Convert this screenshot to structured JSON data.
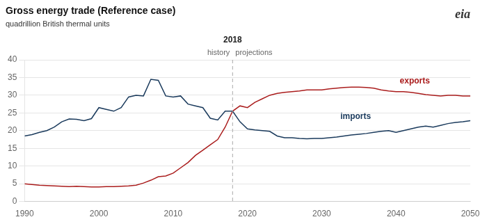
{
  "chart_data": {
    "type": "line",
    "title": "Gross energy trade (Reference case)",
    "subtitle": "quadrillion British thermal units",
    "x": [
      1990,
      1991,
      1992,
      1993,
      1994,
      1995,
      1996,
      1997,
      1998,
      1999,
      2000,
      2001,
      2002,
      2003,
      2004,
      2005,
      2006,
      2007,
      2008,
      2009,
      2010,
      2011,
      2012,
      2013,
      2014,
      2015,
      2016,
      2017,
      2018,
      2019,
      2020,
      2021,
      2022,
      2023,
      2024,
      2025,
      2026,
      2027,
      2028,
      2029,
      2030,
      2031,
      2032,
      2033,
      2034,
      2035,
      2036,
      2037,
      2038,
      2039,
      2040,
      2041,
      2042,
      2043,
      2044,
      2045,
      2046,
      2047,
      2048,
      2049,
      2050
    ],
    "series": [
      {
        "name": "imports",
        "color": "#1a3a5c",
        "values": [
          18.5,
          18.9,
          19.5,
          20.0,
          21.0,
          22.5,
          23.3,
          23.2,
          22.8,
          23.4,
          26.5,
          26.0,
          25.5,
          26.5,
          29.5,
          30.0,
          29.8,
          34.5,
          34.2,
          29.8,
          29.5,
          29.8,
          27.5,
          27.0,
          26.5,
          23.5,
          23.0,
          25.5,
          25.5,
          22.5,
          20.5,
          20.2,
          20.0,
          19.8,
          18.5,
          18.0,
          18.0,
          17.8,
          17.7,
          17.8,
          17.8,
          18.0,
          18.2,
          18.5,
          18.8,
          19.0,
          19.2,
          19.5,
          19.8,
          20.0,
          19.5,
          20.0,
          20.5,
          21.0,
          21.3,
          21.0,
          21.5,
          22.0,
          22.3,
          22.5,
          22.8
        ]
      },
      {
        "name": "exports",
        "color": "#aa1c1c",
        "values": [
          5.0,
          4.8,
          4.6,
          4.5,
          4.4,
          4.3,
          4.2,
          4.3,
          4.2,
          4.1,
          4.1,
          4.2,
          4.2,
          4.3,
          4.4,
          4.6,
          5.2,
          6.0,
          7.0,
          7.2,
          8.0,
          9.5,
          11.0,
          13.0,
          14.5,
          16.0,
          17.5,
          21.0,
          25.5,
          27.0,
          26.5,
          28.0,
          29.0,
          30.0,
          30.5,
          30.8,
          31.0,
          31.2,
          31.5,
          31.5,
          31.5,
          31.8,
          32.0,
          32.2,
          32.3,
          32.3,
          32.2,
          32.0,
          31.5,
          31.2,
          31.0,
          31.0,
          30.8,
          30.5,
          30.2,
          30.0,
          29.8,
          30.0,
          30.0,
          29.8,
          29.8
        ]
      }
    ],
    "xlim": [
      1990,
      2050
    ],
    "xticks": [
      1990,
      2000,
      2010,
      2020,
      2030,
      2040,
      2050
    ],
    "ylim": [
      0,
      40
    ],
    "yticks": [
      0,
      5,
      10,
      15,
      20,
      25,
      30,
      35,
      40
    ],
    "grid": "y",
    "annotations": [
      {
        "text": "2018",
        "x": 2018,
        "line_style": "dashed"
      },
      {
        "text": "history",
        "x": 2018,
        "side": "left"
      },
      {
        "text": "projections",
        "x": 2018,
        "side": "right"
      },
      {
        "text": "exports",
        "x": 2040.5,
        "y": 34.0,
        "color": "#aa1c1c"
      },
      {
        "text": "imports",
        "x": 2032.5,
        "y": 24.0,
        "color": "#1a3a5c"
      },
      {
        "text": "eia"
      }
    ]
  }
}
